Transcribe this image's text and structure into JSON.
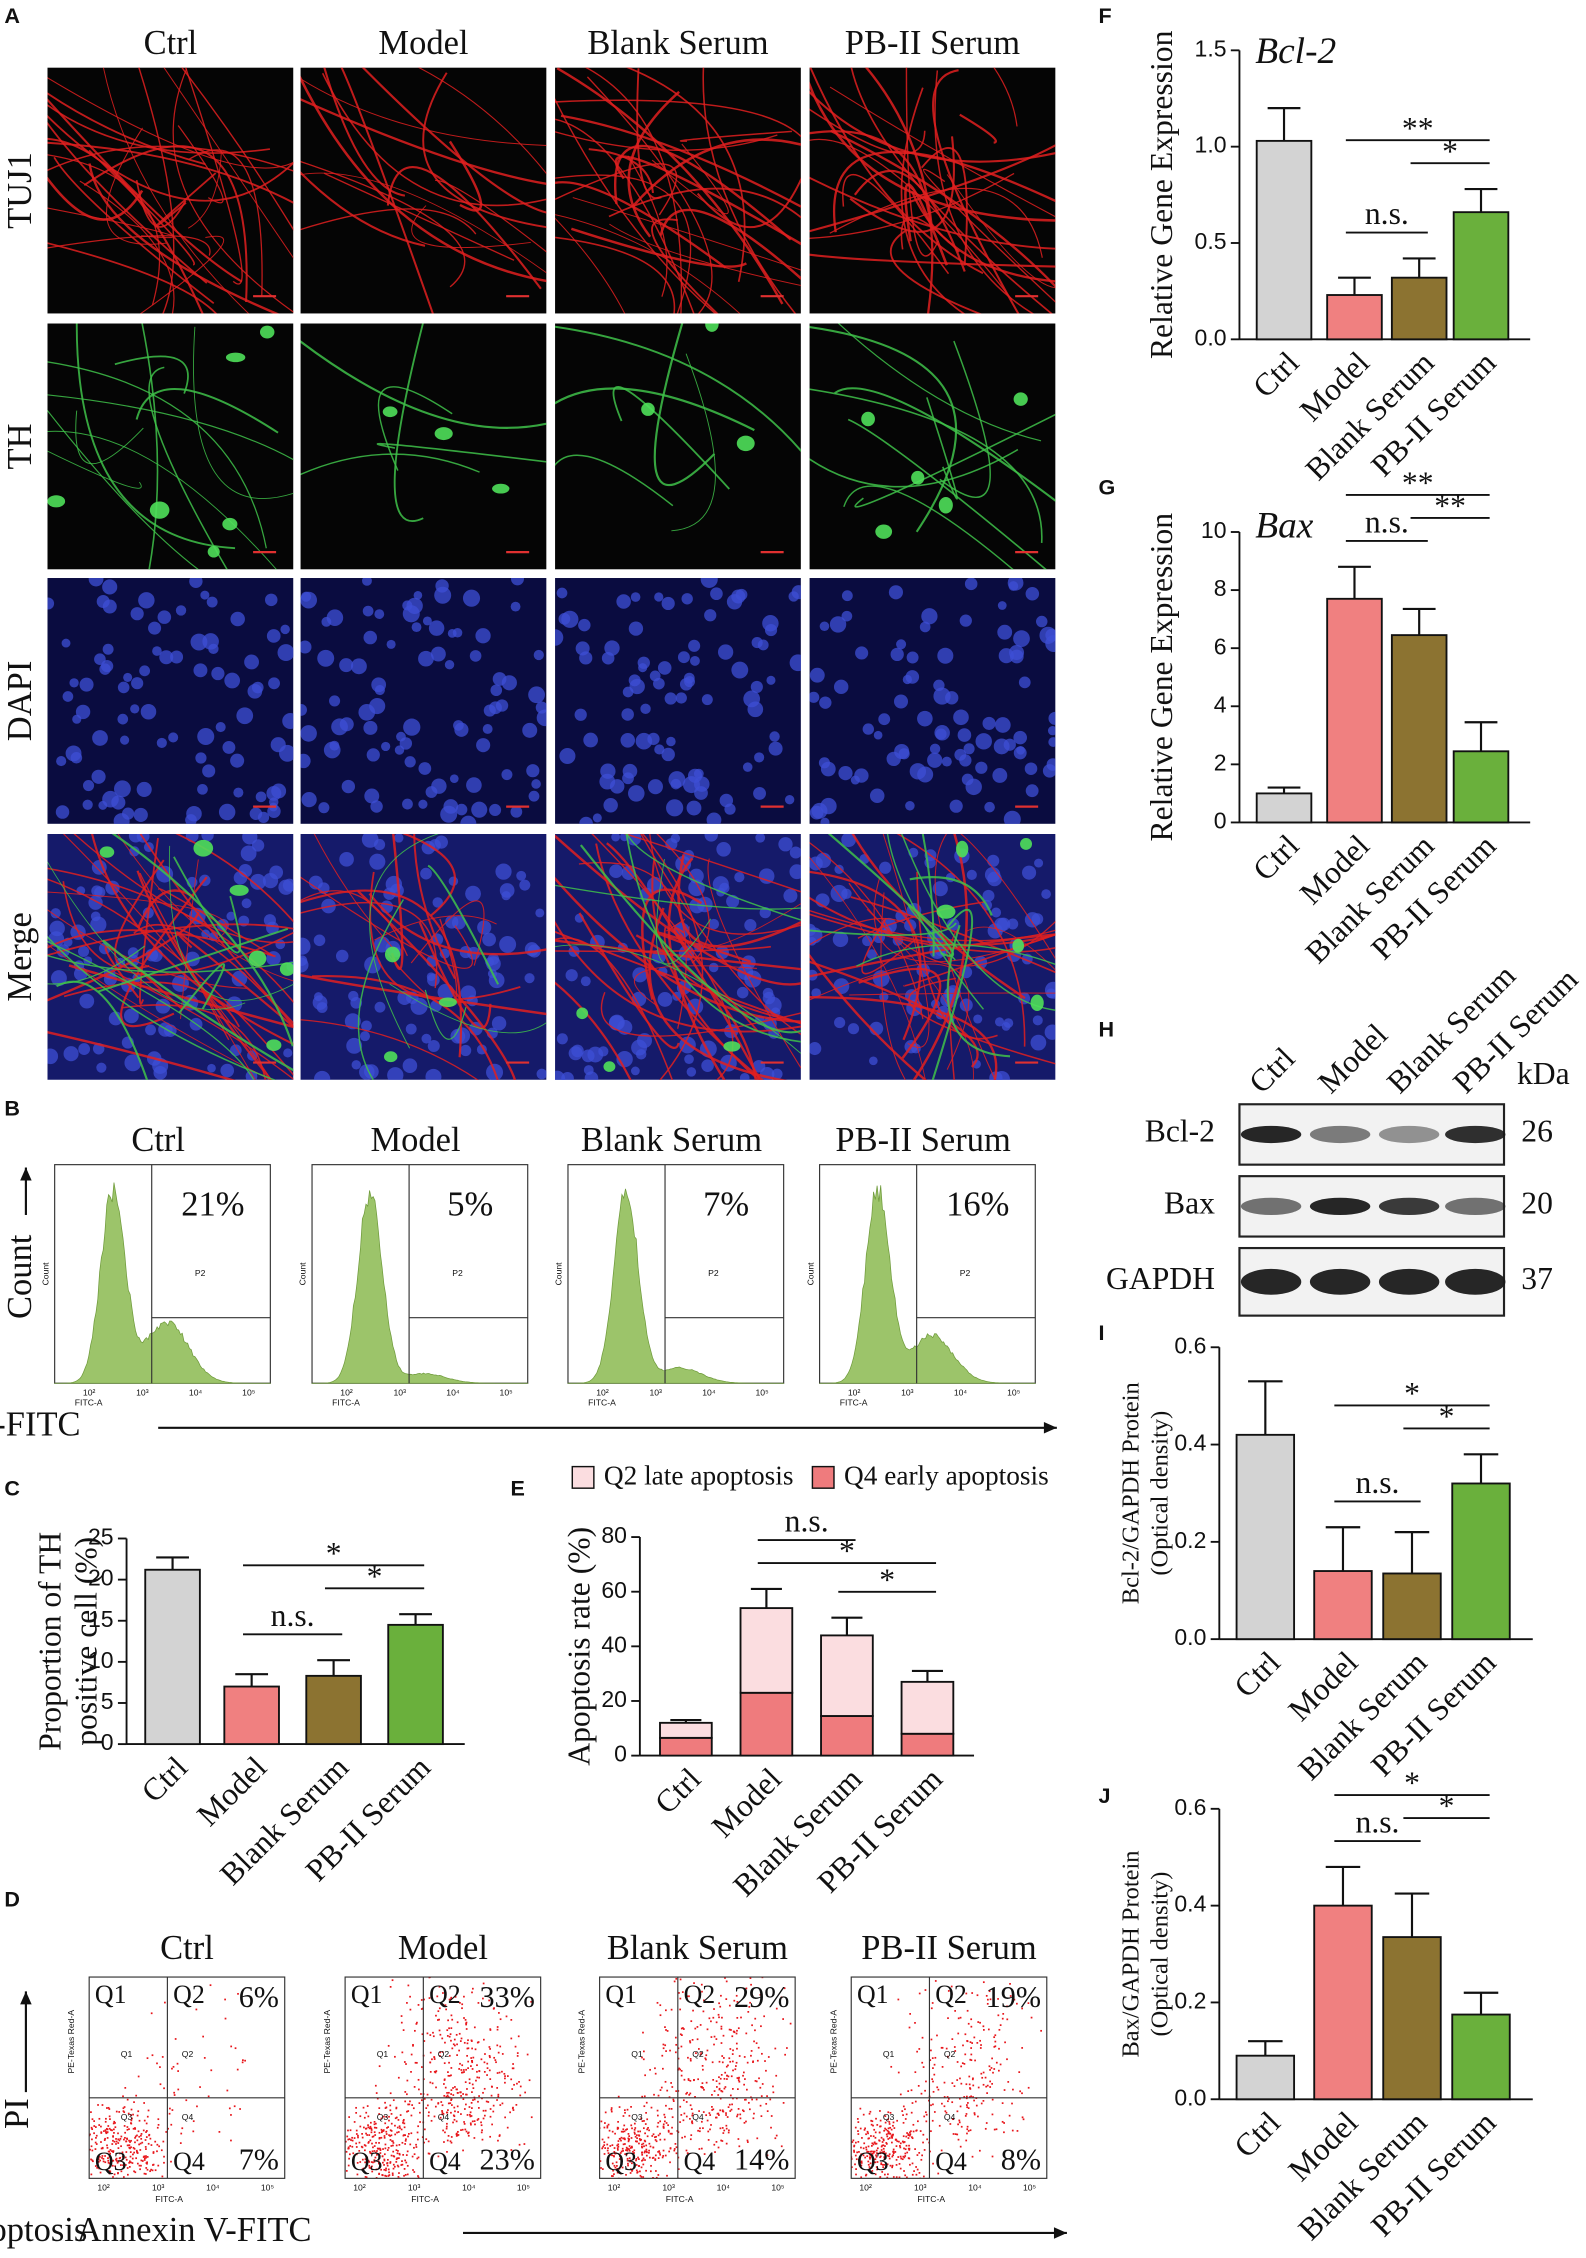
{
  "microscopy": {
    "label": "A",
    "columns": [
      "Ctrl",
      "Model",
      "Blank Serum",
      "PB-II Serum"
    ],
    "rows": [
      "TUJ1",
      "TH",
      "DAPI",
      "Merge"
    ]
  },
  "flow_th": {
    "label": "B",
    "titles": [
      "Ctrl",
      "Model",
      "Blank Serum",
      "PB-II Serum"
    ],
    "percentages": [
      "21%",
      "5%",
      "7%",
      "16%"
    ],
    "gate": "P2",
    "x_axis": "FITC-A",
    "y_axis": "Count",
    "xticks": [
      "10²",
      "10³",
      "10⁴",
      "10⁵"
    ],
    "y_title": "Count",
    "x_title": "TH-FITC"
  },
  "flow_apoptosis": {
    "label": "D",
    "titles": [
      "Ctrl",
      "Model",
      "Blank Serum",
      "PB-II Serum"
    ],
    "quadrants": [
      "Q1",
      "Q2",
      "Q3",
      "Q4"
    ],
    "q2": [
      "6%",
      "33%",
      "29%",
      "19%"
    ],
    "q4": [
      "7%",
      "23%",
      "14%",
      "8%"
    ],
    "x_axis": "FITC-A",
    "y_axis": "PE-Texas Red-A",
    "xticks": [
      "10²",
      "10³",
      "10⁴",
      "10⁵"
    ],
    "y_title": "PI",
    "x_title_left": "Apoptosis",
    "x_title": "Annexin V-FITC"
  },
  "western_blot": {
    "label": "H",
    "lanes": [
      "Ctrl",
      "Model",
      "Blank Serum",
      "PB-II Serum"
    ],
    "unit": "kDa",
    "proteins": [
      "Bcl-2",
      "Bax",
      "GAPDH"
    ],
    "kda": [
      26,
      20,
      37
    ]
  },
  "chart_data": [
    {
      "type": "bar",
      "label": "C",
      "ylabel": [
        "Proportion of TH",
        "positive cell (%)"
      ],
      "categories": [
        "Ctrl",
        "Model",
        "Blank Serum",
        "PB-II Serum"
      ],
      "values": [
        21.2,
        7,
        8.3,
        14.5
      ],
      "errors": [
        1.5,
        1.5,
        1.9,
        1.3
      ],
      "colors": [
        "#d3d3d3",
        "#f08080",
        "#8c7331",
        "#6ab03c"
      ],
      "ylim": [
        0,
        25
      ],
      "yticks": [
        0,
        5,
        10,
        15,
        20,
        25
      ],
      "comparisons": [
        {
          "label": "n.s.",
          "between": [
            "Model",
            "Blank Serum"
          ]
        },
        {
          "label": "*",
          "between": [
            "Blank Serum",
            "PB-II Serum"
          ]
        },
        {
          "label": "*",
          "between": [
            "Model",
            "PB-II Serum"
          ]
        }
      ]
    },
    {
      "type": "stacked_bar",
      "label": "E",
      "ylabel": [
        "Apoptosis rate (%)"
      ],
      "categories": [
        "Ctrl",
        "Model",
        "Blank Serum",
        "PB-II Serum"
      ],
      "series": [
        {
          "name": "Q4 early apoptosis",
          "color": "#ef7b7d",
          "values": [
            6.5,
            23,
            14.5,
            8
          ],
          "errors": [
            1.5,
            4,
            3.5,
            2.5
          ]
        },
        {
          "name": "Q2 late apoptosis",
          "color": "#fbdde0",
          "values": [
            5.5,
            31,
            29.5,
            19
          ],
          "errors": [
            1,
            7,
            6.5,
            4
          ]
        }
      ],
      "ylim": [
        0,
        80
      ],
      "yticks": [
        0,
        20,
        40,
        60,
        80
      ],
      "comparisons": [
        {
          "label": "*",
          "between": [
            "Blank Serum",
            "PB-II Serum"
          ]
        },
        {
          "label": "*",
          "between": [
            "Model",
            "PB-II Serum"
          ]
        },
        {
          "label": "n.s.",
          "between": [
            "Model",
            "Blank Serum"
          ]
        }
      ]
    },
    {
      "type": "bar",
      "label": "F",
      "title": "Bcl-2",
      "ylabel": [
        "Relative Gene Expression"
      ],
      "categories": [
        "Ctrl",
        "Model",
        "Blank Serum",
        "PB-II Serum"
      ],
      "values": [
        1.03,
        0.23,
        0.32,
        0.66
      ],
      "errors": [
        0.17,
        0.09,
        0.1,
        0.12
      ],
      "colors": [
        "#d3d3d3",
        "#f08080",
        "#8c7331",
        "#6ab03c"
      ],
      "ylim": [
        0,
        1.5
      ],
      "yticks": [
        {
          "value": 0,
          "label": "0.0"
        },
        0.5,
        {
          "value": 1,
          "label": "1.0"
        },
        1.5
      ],
      "comparisons": [
        {
          "label": "n.s.",
          "between": [
            "Model",
            "Blank Serum"
          ]
        },
        {
          "label": "*",
          "between": [
            "Blank Serum",
            "PB-II Serum"
          ]
        },
        {
          "label": "**",
          "between": [
            "Model",
            "PB-II Serum"
          ]
        }
      ]
    },
    {
      "type": "bar",
      "label": "G",
      "title": "Bax",
      "ylabel": [
        "Relative Gene Expression"
      ],
      "categories": [
        "Ctrl",
        "Model",
        "Blank Serum",
        "PB-II Serum"
      ],
      "values": [
        1.0,
        7.7,
        6.45,
        2.45
      ],
      "errors": [
        0.2,
        1.1,
        0.9,
        1.0
      ],
      "colors": [
        "#d3d3d3",
        "#f08080",
        "#8c7331",
        "#6ab03c"
      ],
      "ylim": [
        0,
        10
      ],
      "yticks": [
        0,
        2,
        4,
        6,
        8,
        10
      ],
      "comparisons": [
        {
          "label": "n.s.",
          "between": [
            "Model",
            "Blank Serum"
          ]
        },
        {
          "label": "**",
          "between": [
            "Blank Serum",
            "PB-II Serum"
          ]
        },
        {
          "label": "**",
          "between": [
            "Model",
            "PB-II Serum"
          ]
        }
      ]
    },
    {
      "type": "bar",
      "label": "I",
      "ylabel": [
        "Bcl-2/GAPDH Protein",
        "(Optical density)"
      ],
      "categories": [
        "Ctrl",
        "Model",
        "Blank Serum",
        "PB-II Serum"
      ],
      "values": [
        0.42,
        0.14,
        0.135,
        0.32
      ],
      "errors": [
        0.11,
        0.09,
        0.085,
        0.06
      ],
      "colors": [
        "#d3d3d3",
        "#f08080",
        "#8c7331",
        "#6ab03c"
      ],
      "ylim": [
        0,
        0.6
      ],
      "yticks": [
        {
          "value": 0,
          "label": "0.0"
        },
        0.2,
        0.4,
        0.6
      ],
      "comparisons": [
        {
          "label": "n.s.",
          "between": [
            "Model",
            "Blank Serum"
          ]
        },
        {
          "label": "*",
          "between": [
            "Blank Serum",
            "PB-II Serum"
          ]
        },
        {
          "label": "*",
          "between": [
            "Model",
            "PB-II Serum"
          ]
        }
      ]
    },
    {
      "type": "bar",
      "label": "J",
      "ylabel": [
        "Bax/GAPDH Protein",
        "(Optical density)"
      ],
      "categories": [
        "Ctrl",
        "Model",
        "Blank Serum",
        "PB-II Serum"
      ],
      "values": [
        0.09,
        0.4,
        0.335,
        0.175
      ],
      "errors": [
        0.03,
        0.08,
        0.09,
        0.045
      ],
      "colors": [
        "#d3d3d3",
        "#f08080",
        "#8c7331",
        "#6ab03c"
      ],
      "ylim": [
        0,
        0.6
      ],
      "yticks": [
        {
          "value": 0,
          "label": "0.0"
        },
        0.2,
        0.4,
        0.6
      ],
      "comparisons": [
        {
          "label": "n.s.",
          "between": [
            "Model",
            "Blank Serum"
          ]
        },
        {
          "label": "*",
          "between": [
            "Blank Serum",
            "PB-II Serum"
          ]
        },
        {
          "label": "*",
          "between": [
            "Model",
            "PB-II Serum"
          ]
        }
      ]
    }
  ]
}
